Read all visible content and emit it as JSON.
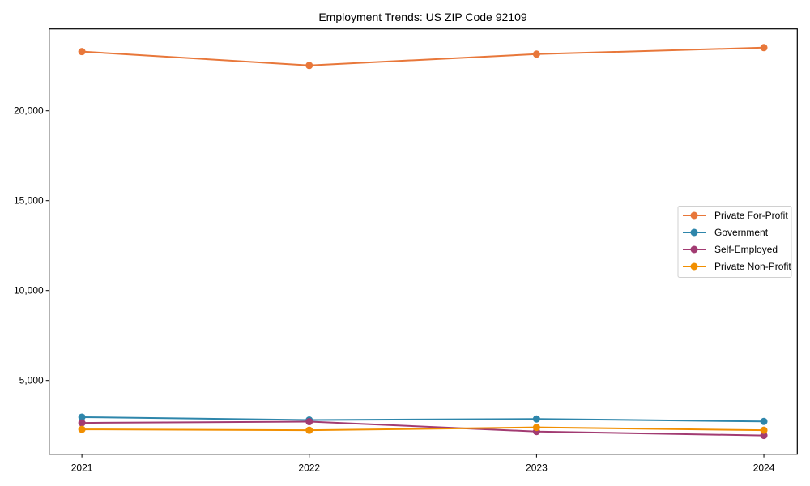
{
  "chart_data": {
    "type": "line",
    "title": "Employment Trends: US ZIP Code 92109",
    "xlabel": "",
    "ylabel": "",
    "x": [
      "2021",
      "2022",
      "2023",
      "2024"
    ],
    "xlim": [
      2020.856,
      2024.147
    ],
    "ylim": [
      900,
      24550
    ],
    "yticks": [
      5000,
      10000,
      15000,
      20000
    ],
    "ytick_labels": [
      "5,000",
      "10,000",
      "15,000",
      "20,000"
    ],
    "grid": false,
    "legend_position": "center right",
    "series": [
      {
        "name": "Private For-Profit",
        "color": "#E8773A",
        "values": [
          23290,
          22520,
          23150,
          23510
        ]
      },
      {
        "name": "Government",
        "color": "#2E86AB",
        "values": [
          2960,
          2800,
          2860,
          2720
        ]
      },
      {
        "name": "Self-Employed",
        "color": "#A23B72",
        "values": [
          2640,
          2710,
          2160,
          1940
        ]
      },
      {
        "name": "Private Non-Profit",
        "color": "#F18F01",
        "values": [
          2280,
          2230,
          2390,
          2230
        ]
      }
    ]
  }
}
